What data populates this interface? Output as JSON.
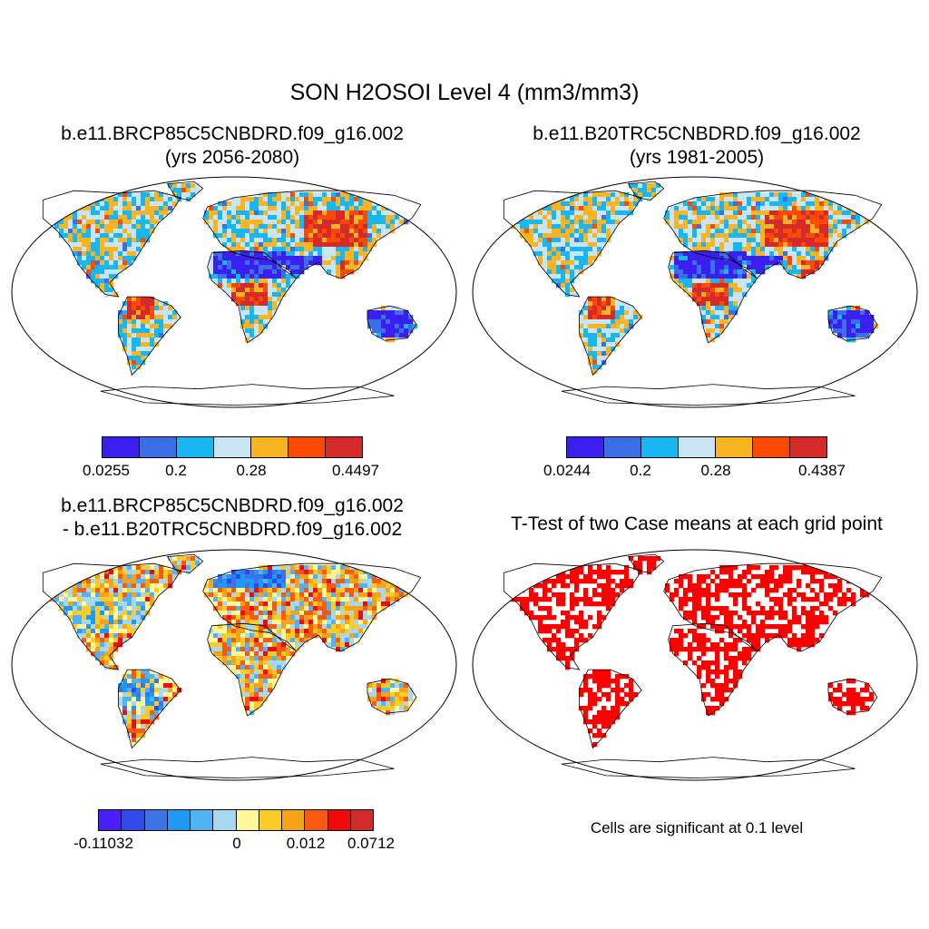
{
  "title": "SON H2OSOI Level 4 (mm3/mm3)",
  "panels": [
    {
      "id": "p1",
      "title_line1": "b.e11.BRCP85C5CNBDRD.f09_g16.002",
      "title_line2": "(yrs 2056-2080)",
      "colorbar": {
        "colors": [
          "#3a1ff0",
          "#3c6ee6",
          "#19b7f2",
          "#c8e4f5",
          "#f8b521",
          "#fc4a05",
          "#d42a2a"
        ],
        "tick_labels": [
          "0.0255",
          "0.2",
          "0.28",
          "0.4497"
        ]
      }
    },
    {
      "id": "p2",
      "title_line1": "b.e11.B20TRC5CNBDRD.f09_g16.002",
      "title_line2": "(yrs 1981-2005)",
      "colorbar": {
        "colors": [
          "#3a1ff0",
          "#3c6ee6",
          "#19b7f2",
          "#c8e4f5",
          "#f8b521",
          "#fc4a05",
          "#d42a2a"
        ],
        "tick_labels": [
          "0.0244",
          "0.2",
          "0.28",
          "0.4387"
        ]
      }
    },
    {
      "id": "p3",
      "title_line1": "b.e11.BRCP85C5CNBDRD.f09_g16.002",
      "title_line2": "- b.e11.B20TRC5CNBDRD.f09_g16.002",
      "colorbar": {
        "colors": [
          "#4a1ff5",
          "#2f4ae6",
          "#3b74e6",
          "#1e9af5",
          "#4fb3f5",
          "#a8d8f0",
          "#fff89a",
          "#fccb28",
          "#f8a218",
          "#f85a10",
          "#f00a0a",
          "#d42a2a"
        ],
        "tick_labels": [
          "-0.11032",
          "0",
          "0.012",
          "0.0712"
        ]
      }
    },
    {
      "id": "p4",
      "title_line1": "T-Test of two Case means at each grid point",
      "note": "Cells are significant at 0.1 level",
      "significance_color": "#ff0000"
    }
  ]
}
